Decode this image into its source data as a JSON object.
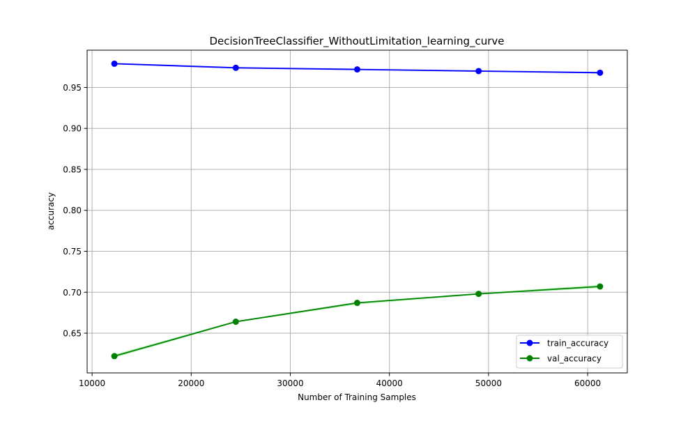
{
  "chart_data": {
    "type": "line",
    "title": "DecisionTreeClassifier_WithoutLimitation_learning_curve",
    "xlabel": "Number of Training Samples",
    "ylabel": "accuracy",
    "xlim": [
      9500,
      64000
    ],
    "ylim": [
      0.6015,
      0.9955
    ],
    "xticks": [
      10000,
      20000,
      30000,
      40000,
      50000,
      60000
    ],
    "xtick_labels": [
      "10000",
      "20000",
      "30000",
      "40000",
      "50000",
      "60000"
    ],
    "yticks": [
      0.65,
      0.7,
      0.75,
      0.8,
      0.85,
      0.9,
      0.95
    ],
    "ytick_labels": [
      "0.65",
      "0.70",
      "0.75",
      "0.80",
      "0.85",
      "0.90",
      "0.95"
    ],
    "grid": true,
    "legend_position": "lower-right",
    "x": [
      12250,
      24500,
      36750,
      49000,
      61250
    ],
    "series": [
      {
        "name": "train_accuracy",
        "color": "#0000ff",
        "band_color": "#8c8cff",
        "values": [
          0.979,
          0.974,
          0.972,
          0.97,
          0.968
        ],
        "band_lower": [
          0.978,
          0.973,
          0.971,
          0.969,
          0.967
        ],
        "band_upper": [
          0.98,
          0.975,
          0.973,
          0.971,
          0.969
        ]
      },
      {
        "name": "val_accuracy",
        "color": "#008000",
        "band_color": "#90ee90",
        "values": [
          0.622,
          0.664,
          0.687,
          0.698,
          0.707
        ],
        "band_lower": [
          0.62,
          0.663,
          0.685,
          0.697,
          0.705
        ],
        "band_upper": [
          0.624,
          0.665,
          0.688,
          0.699,
          0.709
        ]
      }
    ]
  }
}
